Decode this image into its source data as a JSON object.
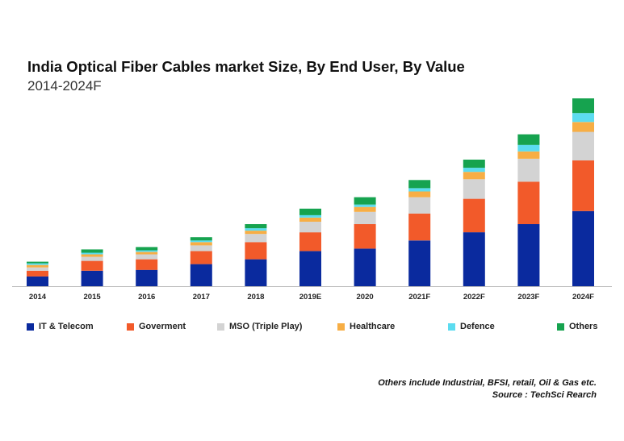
{
  "title": "India Optical Fiber Cables market Size, By End User, By Value",
  "subtitle": "2014-2024F",
  "note_line1": "Others include Industrial, BFSI, retail, Oil & Gas etc.",
  "note_line2": "Source : TechSci Rearch",
  "chart_data": {
    "type": "bar",
    "stacked": true,
    "title": "India Optical Fiber Cables market Size, By End User, By Value",
    "subtitle": "2014-2024F",
    "categories": [
      "2014",
      "2015",
      "2016",
      "2017",
      "2018",
      "2019E",
      "2020",
      "2021F",
      "2022F",
      "2023F",
      "2024F"
    ],
    "ylim": [
      0,
      230
    ],
    "grid": false,
    "legend": "bottom",
    "series": [
      {
        "name": "IT & Telecom",
        "color": "#0a2a9e",
        "values": [
          12,
          19,
          20,
          27,
          33,
          43,
          46,
          56,
          66,
          76,
          92
        ]
      },
      {
        "name": "Goverment",
        "color": "#f25a2a",
        "values": [
          7,
          12,
          13,
          16,
          21,
          23,
          30,
          33,
          41,
          52,
          62
        ]
      },
      {
        "name": "MSO (Triple Play)",
        "color": "#d3d3d3",
        "values": [
          4,
          5,
          6,
          7,
          10,
          13,
          15,
          20,
          24,
          28,
          35
        ]
      },
      {
        "name": "Healthcare",
        "color": "#f7ae45",
        "values": [
          3,
          3,
          3,
          4,
          4,
          5,
          6,
          7,
          9,
          9,
          12
        ]
      },
      {
        "name": "Defence",
        "color": "#5cdcf0",
        "values": [
          2,
          2,
          2,
          2,
          3,
          3,
          3,
          4,
          5,
          8,
          11
        ]
      },
      {
        "name": "Others",
        "color": "#16a34f",
        "values": [
          2,
          4,
          4,
          4,
          5,
          8,
          9,
          10,
          10,
          13,
          18
        ]
      }
    ]
  }
}
